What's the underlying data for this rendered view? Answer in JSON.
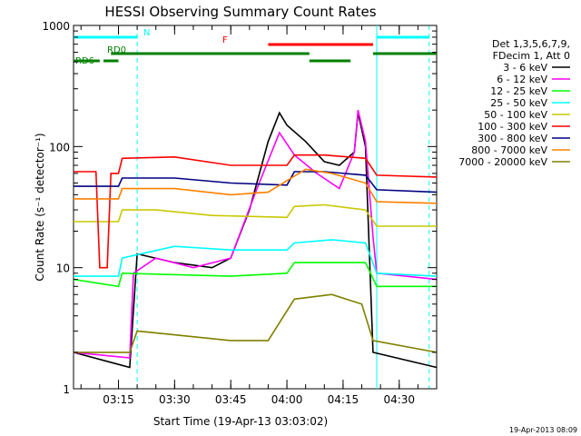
{
  "chart_data": {
    "type": "line",
    "title": "HESSI Observing Summary Count Rates",
    "xlabel": "Start Time (19-Apr-13 03:03:02)",
    "ylabel": "Count Rate (s⁻¹ detector⁻¹)",
    "y_scale": "log",
    "ylim": [
      1,
      1000
    ],
    "y_ticks": [
      "1",
      "10",
      "100",
      "1000"
    ],
    "x_range_minutes": [
      "03:03",
      "04:40"
    ],
    "x_ticks": [
      "03:15",
      "03:30",
      "03:45",
      "04:00",
      "04:15",
      "04:30"
    ],
    "timestamp": "19-Apr-2013 08:09",
    "legend_header": [
      "Det 1,3,5,6,7,9,",
      "FDecim 1, Att 0"
    ],
    "bands": [
      {
        "label": "N",
        "color": "#00ffff",
        "segments": [
          [
            "03:03",
            "03:20"
          ],
          [
            "04:24",
            "04:38"
          ]
        ]
      },
      {
        "label": "F",
        "color": "#ff0000",
        "segments": [
          [
            "03:55",
            "04:23"
          ]
        ]
      },
      {
        "label": "RD0",
        "color": "#008000",
        "segments": [
          [
            "03:13",
            "04:06"
          ],
          [
            "04:23",
            "04:40"
          ]
        ]
      },
      {
        "label": "RD6",
        "color": "#008000",
        "segments": [
          [
            "03:03",
            "03:10"
          ],
          [
            "03:11",
            "03:15"
          ],
          [
            "04:06",
            "04:17"
          ]
        ]
      }
    ],
    "series": [
      {
        "name": "3 - 6 keV",
        "color": "#000000",
        "points": [
          [
            "03:03",
            2
          ],
          [
            "03:18",
            1.5
          ],
          [
            "03:20",
            13
          ],
          [
            "03:30",
            11
          ],
          [
            "03:40",
            10
          ],
          [
            "03:45",
            12
          ],
          [
            "03:50",
            30
          ],
          [
            "03:55",
            110
          ],
          [
            "03:58",
            190
          ],
          [
            "04:00",
            150
          ],
          [
            "04:05",
            110
          ],
          [
            "04:10",
            75
          ],
          [
            "04:14",
            70
          ],
          [
            "04:18",
            90
          ],
          [
            "04:19",
            190
          ],
          [
            "04:21",
            100
          ],
          [
            "04:23",
            2
          ],
          [
            "04:40",
            1.5
          ]
        ]
      },
      {
        "name": "6 - 12 keV",
        "color": "#ff00ff",
        "points": [
          [
            "03:03",
            2
          ],
          [
            "03:18",
            1.8
          ],
          [
            "03:19",
            9
          ],
          [
            "03:25",
            12
          ],
          [
            "03:35",
            10
          ],
          [
            "03:45",
            12
          ],
          [
            "03:52",
            45
          ],
          [
            "03:58",
            130
          ],
          [
            "04:02",
            85
          ],
          [
            "04:08",
            60
          ],
          [
            "04:14",
            45
          ],
          [
            "04:18",
            90
          ],
          [
            "04:19",
            200
          ],
          [
            "04:21",
            110
          ],
          [
            "04:23",
            18
          ],
          [
            "04:24",
            9
          ],
          [
            "04:40",
            8
          ]
        ]
      },
      {
        "name": "12 - 25 keV",
        "color": "#00ff00",
        "points": [
          [
            "03:03",
            8
          ],
          [
            "03:15",
            7
          ],
          [
            "03:16",
            9
          ],
          [
            "03:45",
            8.5
          ],
          [
            "04:00",
            9
          ],
          [
            "04:02",
            11
          ],
          [
            "04:15",
            11
          ],
          [
            "04:21",
            11
          ],
          [
            "04:24",
            7
          ],
          [
            "04:40",
            7
          ]
        ]
      },
      {
        "name": "25 - 50 keV",
        "color": "#00ffff",
        "points": [
          [
            "03:03",
            8.5
          ],
          [
            "03:15",
            8.5
          ],
          [
            "03:16",
            12
          ],
          [
            "03:30",
            15
          ],
          [
            "03:45",
            14
          ],
          [
            "04:00",
            14
          ],
          [
            "04:02",
            16
          ],
          [
            "04:12",
            17
          ],
          [
            "04:21",
            16
          ],
          [
            "04:24",
            9
          ],
          [
            "04:40",
            8.5
          ]
        ]
      },
      {
        "name": "50 - 100 keV",
        "color": "#c8c800",
        "points": [
          [
            "03:03",
            24
          ],
          [
            "03:15",
            24
          ],
          [
            "03:16",
            30
          ],
          [
            "03:25",
            30
          ],
          [
            "03:40",
            27
          ],
          [
            "04:00",
            26
          ],
          [
            "04:02",
            32
          ],
          [
            "04:10",
            33
          ],
          [
            "04:21",
            30
          ],
          [
            "04:24",
            22
          ],
          [
            "04:40",
            22
          ]
        ]
      },
      {
        "name": "100 - 300 keV",
        "color": "#ff0000",
        "points": [
          [
            "03:03",
            62
          ],
          [
            "03:09",
            62
          ],
          [
            "03:10",
            10
          ],
          [
            "03:12",
            10
          ],
          [
            "03:13",
            60
          ],
          [
            "03:15",
            60
          ],
          [
            "03:16",
            80
          ],
          [
            "03:30",
            82
          ],
          [
            "03:45",
            70
          ],
          [
            "04:00",
            70
          ],
          [
            "04:02",
            85
          ],
          [
            "04:10",
            85
          ],
          [
            "04:21",
            80
          ],
          [
            "04:24",
            58
          ],
          [
            "04:40",
            56
          ]
        ]
      },
      {
        "name": "300 - 800 keV",
        "color": "#000080",
        "points": [
          [
            "03:03",
            47
          ],
          [
            "03:15",
            47
          ],
          [
            "03:16",
            55
          ],
          [
            "03:30",
            55
          ],
          [
            "03:45",
            50
          ],
          [
            "04:00",
            48
          ],
          [
            "04:02",
            62
          ],
          [
            "04:10",
            62
          ],
          [
            "04:21",
            58
          ],
          [
            "04:24",
            44
          ],
          [
            "04:40",
            42
          ]
        ]
      },
      {
        "name": "800 - 7000 keV",
        "color": "#ff8000",
        "points": [
          [
            "03:03",
            37
          ],
          [
            "03:15",
            37
          ],
          [
            "03:16",
            45
          ],
          [
            "03:30",
            45
          ],
          [
            "03:45",
            40
          ],
          [
            "03:55",
            42
          ],
          [
            "04:05",
            65
          ],
          [
            "04:12",
            60
          ],
          [
            "04:21",
            50
          ],
          [
            "04:24",
            35
          ],
          [
            "04:40",
            34
          ]
        ]
      },
      {
        "name": "7000 - 20000 keV",
        "color": "#808000",
        "points": [
          [
            "03:03",
            2
          ],
          [
            "03:18",
            2
          ],
          [
            "03:20",
            3
          ],
          [
            "03:45",
            2.5
          ],
          [
            "03:55",
            2.5
          ],
          [
            "04:02",
            5.5
          ],
          [
            "04:12",
            6
          ],
          [
            "04:20",
            5
          ],
          [
            "04:23",
            2.5
          ],
          [
            "04:40",
            2
          ]
        ]
      }
    ]
  }
}
